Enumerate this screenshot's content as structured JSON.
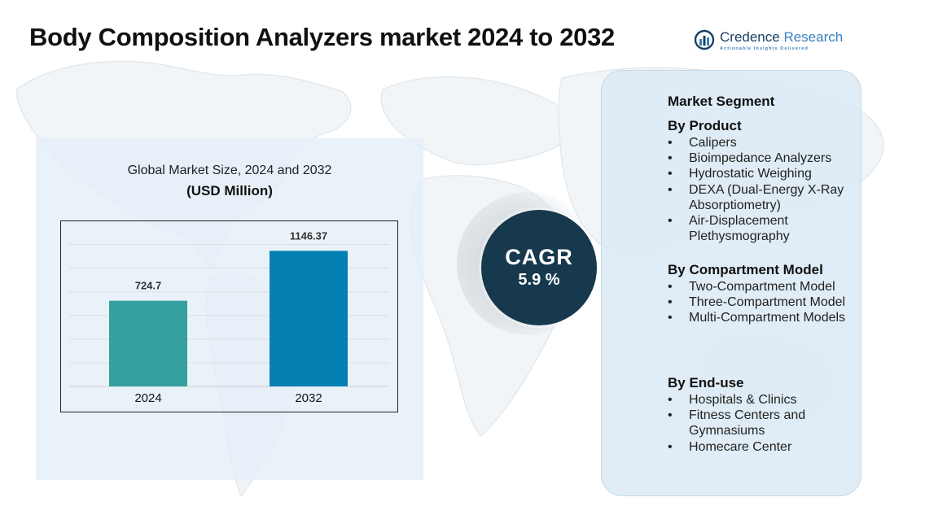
{
  "title": "Body Composition Analyzers market  2024  to 2032",
  "logo": {
    "name_part1": "Credence",
    "name_part2": " Research",
    "tagline": "Actionable Insights Delivered",
    "icon": "bar-chart-logo-icon"
  },
  "chart": {
    "heading_line1": "Global Market Size, 2024 and 2032",
    "heading_line2": "(USD Million)"
  },
  "chart_data": {
    "type": "bar",
    "categories": [
      "2024",
      "2032"
    ],
    "values": [
      724.7,
      1146.37
    ],
    "value_labels": [
      "724.7",
      "1146.37"
    ],
    "colors": [
      "#35a0a0",
      "#0580b3"
    ],
    "title": "Global Market Size, 2024 and 2032",
    "ylabel": "",
    "xlabel": "",
    "ylim": [
      0,
      1300
    ],
    "grid": true,
    "legend": "none"
  },
  "cagr": {
    "label": "CAGR",
    "value": "5.9 %"
  },
  "segments": {
    "title": "Market Segment",
    "groups": [
      {
        "heading": "By Product",
        "items": [
          "Calipers",
          "Bioimpedance Analyzers",
          "Hydrostatic Weighing",
          "DEXA (Dual-Energy X-Ray Absorptiometry)",
          "Air-Displacement Plethysmography"
        ]
      },
      {
        "heading": "By Compartment Model",
        "items": [
          "Two-Compartment Model",
          "Three-Compartment Model",
          "Multi-Compartment Models"
        ]
      },
      {
        "heading": "By End-use",
        "items": [
          "Hospitals & Clinics",
          "Fitness Centers and Gymnasiums",
          "Homecare Center"
        ]
      }
    ],
    "bullet": "•"
  },
  "background": {
    "icon": "world-map-background"
  }
}
